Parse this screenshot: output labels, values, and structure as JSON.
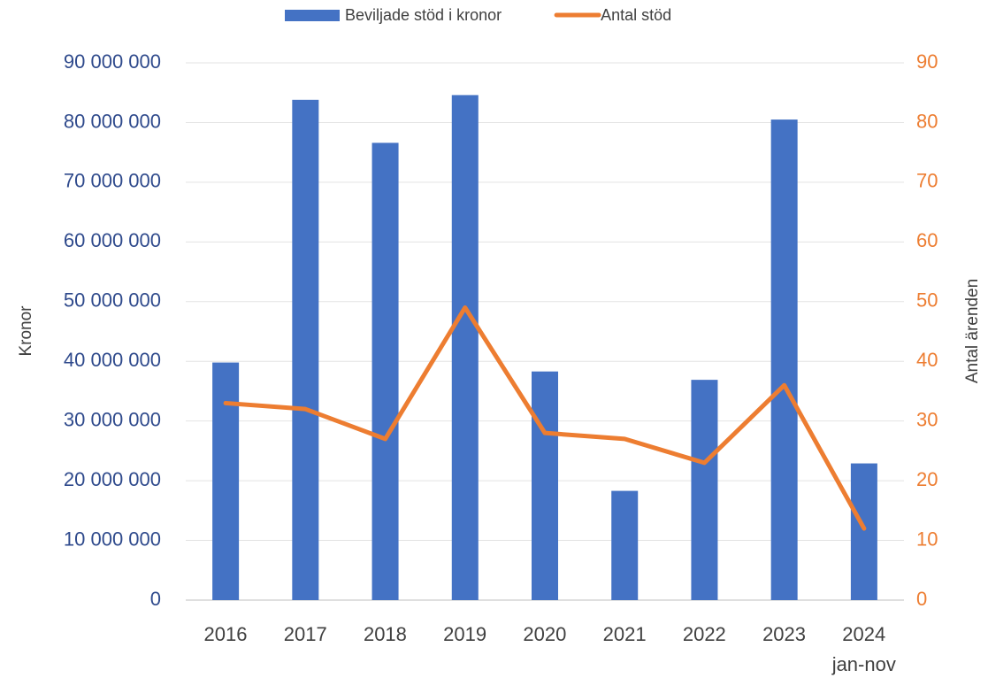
{
  "chart_data": {
    "type": "bar",
    "categories": [
      "2016",
      "2017",
      "2018",
      "2019",
      "2020",
      "2021",
      "2022",
      "2023",
      "2024\njan-nov"
    ],
    "series": [
      {
        "name": "Beviljade stöd i kronor",
        "type": "bar",
        "color": "#4472c4",
        "values": [
          39800000,
          83800000,
          76600000,
          84600000,
          38300000,
          18300000,
          36900000,
          80500000,
          22900000
        ]
      },
      {
        "name": "Antal stöd",
        "type": "line",
        "axis": "y2",
        "color": "#ed7d31",
        "values": [
          33,
          32,
          27,
          49,
          28,
          27,
          23,
          36,
          12
        ]
      }
    ],
    "ylabel": "Kronor",
    "y2label": "Antal ärenden",
    "ylim": [
      0,
      90000000
    ],
    "yticks": [
      0,
      {
        "value": 10000000,
        "label": "10 000 000"
      },
      {
        "value": 20000000,
        "label": "20 000 000"
      },
      {
        "value": 30000000,
        "label": "30 000 000"
      },
      {
        "value": 40000000,
        "label": "40 000 000"
      },
      {
        "value": 50000000,
        "label": "50 000 000"
      },
      {
        "value": 60000000,
        "label": "60 000 000"
      },
      {
        "value": 70000000,
        "label": "70 000 000"
      },
      {
        "value": 80000000,
        "label": "80 000 000"
      },
      {
        "value": 90000000,
        "label": "90 000 000"
      }
    ],
    "y2lim": [
      0,
      90
    ],
    "y2ticks": [
      0,
      10,
      20,
      30,
      40,
      50,
      60,
      70,
      80,
      90
    ],
    "grid": true,
    "legend": "top"
  }
}
